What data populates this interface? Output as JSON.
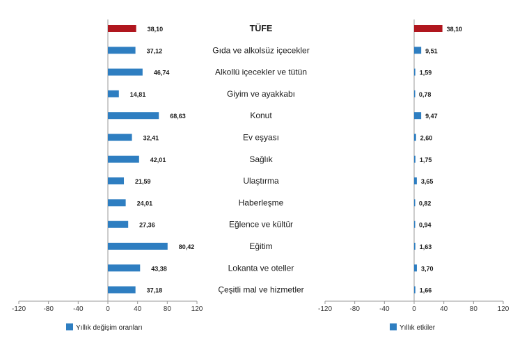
{
  "chart_data": [
    {
      "type": "bar",
      "orientation": "horizontal",
      "categories": [
        "TÜFE",
        "Gıda ve alkolsüz içecekler",
        "Alkollü içecekler ve tütün",
        "Giyim ve ayakkabı",
        "Konut",
        "Ev eşyası",
        "Sağlık",
        "Ulaştırma",
        "Haberleşme",
        "Eğlence ve kültür",
        "Eğitim",
        "Lokanta ve oteller",
        "Çeşitli mal ve hizmetler"
      ],
      "series": [
        {
          "name": "Yıllık değişim oranları",
          "values": [
            38.1,
            37.12,
            46.74,
            14.81,
            68.63,
            32.41,
            42.01,
            21.59,
            24.01,
            27.36,
            80.42,
            43.38,
            37.18
          ],
          "value_labels": [
            "38,10",
            "37,12",
            "46,74",
            "14,81",
            "68,63",
            "32,41",
            "42,01",
            "21,59",
            "24,01",
            "27,36",
            "80,42",
            "43,38",
            "37,18"
          ]
        }
      ],
      "xlim": [
        -120,
        120
      ],
      "xticks": [
        -120,
        -80,
        -40,
        0,
        40,
        80,
        120
      ],
      "tick_labels": [
        "-120",
        "-80",
        "-40",
        "0",
        "40",
        "80",
        "120"
      ],
      "grid": false,
      "legend_position": "bottom-left"
    },
    {
      "type": "bar",
      "orientation": "horizontal",
      "categories": [
        "TÜFE",
        "Gıda ve alkolsüz içecekler",
        "Alkollü içecekler ve tütün",
        "Giyim ve ayakkabı",
        "Konut",
        "Ev eşyası",
        "Sağlık",
        "Ulaştırma",
        "Haberleşme",
        "Eğlence ve kültür",
        "Eğitim",
        "Lokanta ve oteller",
        "Çeşitli mal ve hizmetler"
      ],
      "series": [
        {
          "name": "Yıllık etkiler",
          "values": [
            38.1,
            9.51,
            1.59,
            0.78,
            9.47,
            2.6,
            1.75,
            3.65,
            0.82,
            0.94,
            1.63,
            3.7,
            1.66
          ],
          "value_labels": [
            "38,10",
            "9,51",
            "1,59",
            "0,78",
            "9,47",
            "2,60",
            "1,75",
            "3,65",
            "0,82",
            "0,94",
            "1,63",
            "3,70",
            "1,66"
          ]
        }
      ],
      "xlim": [
        -120,
        120
      ],
      "xticks": [
        -120,
        -80,
        -40,
        0,
        40,
        80,
        120
      ],
      "tick_labels": [
        "-120",
        "-80",
        "-40",
        "0",
        "40",
        "80",
        "120"
      ],
      "grid": false,
      "legend_position": "bottom-left"
    }
  ],
  "colors": {
    "highlight": "#b0161e",
    "bar": "#2e7ec1",
    "axis": "#999999"
  }
}
